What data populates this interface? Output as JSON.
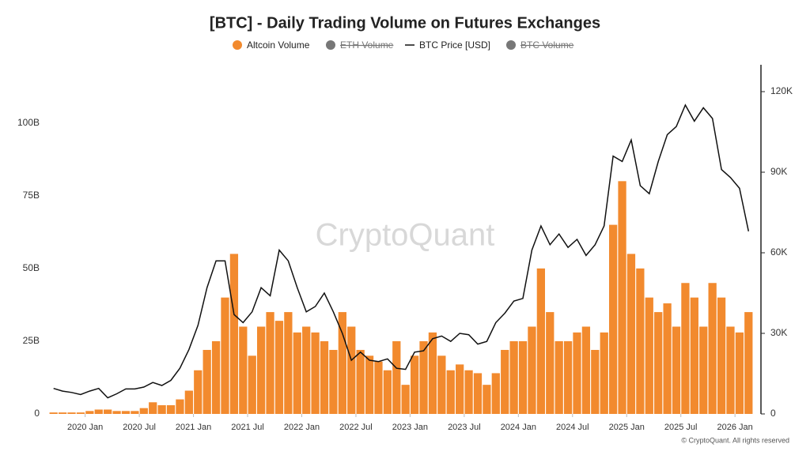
{
  "chart_data": {
    "type": "bar-line",
    "title": "[BTC] - Daily Trading Volume on Futures Exchanges",
    "watermark": "CryptoQuant",
    "credit": "© CryptoQuant. All rights reserved",
    "x": [
      "2019-09",
      "2019-10",
      "2019-11",
      "2019-12",
      "2020-01",
      "2020-02",
      "2020-03",
      "2020-04",
      "2020-05",
      "2020-06",
      "2020-07",
      "2020-08",
      "2020-09",
      "2020-10",
      "2020-11",
      "2020-12",
      "2021-01",
      "2021-02",
      "2021-03",
      "2021-04",
      "2021-05",
      "2021-06",
      "2021-07",
      "2021-08",
      "2021-09",
      "2021-10",
      "2021-11",
      "2021-12",
      "2022-01",
      "2022-02",
      "2022-03",
      "2022-04",
      "2022-05",
      "2022-06",
      "2022-07",
      "2022-08",
      "2022-09",
      "2022-10",
      "2022-11",
      "2022-12",
      "2023-01",
      "2023-02",
      "2023-03",
      "2023-04",
      "2023-05",
      "2023-06",
      "2023-07",
      "2023-08",
      "2023-09",
      "2023-10",
      "2023-11",
      "2023-12",
      "2024-01",
      "2024-02",
      "2024-03",
      "2024-04",
      "2024-05",
      "2024-06",
      "2024-07",
      "2024-08",
      "2024-09",
      "2024-10",
      "2024-11",
      "2024-12",
      "2025-01",
      "2025-02",
      "2025-03",
      "2025-04",
      "2025-05",
      "2025-06",
      "2025-07",
      "2025-08",
      "2025-09",
      "2025-10",
      "2025-11",
      "2025-12",
      "2026-01",
      "2026-02"
    ],
    "xticks": [
      {
        "value": "2020-01",
        "label": "2020 Jan"
      },
      {
        "value": "2020-07",
        "label": "2020 Jul"
      },
      {
        "value": "2021-01",
        "label": "2021 Jan"
      },
      {
        "value": "2021-07",
        "label": "2021 Jul"
      },
      {
        "value": "2022-01",
        "label": "2022 Jan"
      },
      {
        "value": "2022-07",
        "label": "2022 Jul"
      },
      {
        "value": "2023-01",
        "label": "2023 Jan"
      },
      {
        "value": "2023-07",
        "label": "2023 Jul"
      },
      {
        "value": "2024-01",
        "label": "2024 Jan"
      },
      {
        "value": "2024-07",
        "label": "2024 Jul"
      },
      {
        "value": "2025-01",
        "label": "2025 Jan"
      },
      {
        "value": "2025-07",
        "label": "2025 Jul"
      },
      {
        "value": "2026-01",
        "label": "2026 Jan"
      }
    ],
    "ylim": [
      0,
      120
    ],
    "yticks": [
      {
        "value": 0,
        "label": "0"
      },
      {
        "value": 25,
        "label": "25B"
      },
      {
        "value": 50,
        "label": "50B"
      },
      {
        "value": 75,
        "label": "75B"
      },
      {
        "value": 100,
        "label": "100B"
      }
    ],
    "y2lim": [
      0,
      130000
    ],
    "y2ticks": [
      {
        "value": 0,
        "label": "0"
      },
      {
        "value": 30000,
        "label": "30K"
      },
      {
        "value": 60000,
        "label": "60K"
      },
      {
        "value": 90000,
        "label": "90K"
      },
      {
        "value": 120000,
        "label": "120K"
      }
    ],
    "series": [
      {
        "name": "Altcoin Volume",
        "color": "#f28a2e",
        "kind": "bar",
        "values": [
          0.5,
          0.5,
          0.5,
          0.5,
          1,
          1.5,
          1.5,
          1,
          1,
          1,
          2,
          4,
          3,
          3,
          5,
          8,
          15,
          22,
          25,
          40,
          55,
          30,
          20,
          30,
          35,
          32,
          35,
          28,
          30,
          28,
          25,
          22,
          35,
          30,
          22,
          20,
          18,
          15,
          25,
          10,
          20,
          25,
          28,
          20,
          15,
          17,
          15,
          14,
          10,
          14,
          22,
          25,
          25,
          30,
          50,
          35,
          25,
          25,
          28,
          30,
          22,
          28,
          65,
          80,
          55,
          50,
          40,
          35,
          38,
          30,
          45,
          40,
          30,
          45,
          40,
          30,
          28,
          35
        ]
      },
      {
        "name": "ETH Volume",
        "color": "#777777",
        "hidden": true
      },
      {
        "name": "BTC Price [USD]",
        "color": "#111111",
        "kind": "line",
        "axis": "y2",
        "values": [
          9500,
          8500,
          8000,
          7200,
          8500,
          9500,
          6000,
          7500,
          9300,
          9300,
          10000,
          11700,
          10600,
          12500,
          17000,
          24000,
          33000,
          47000,
          57000,
          57000,
          37000,
          34000,
          38000,
          47000,
          44000,
          61000,
          57000,
          47000,
          38000,
          40000,
          45000,
          38000,
          30000,
          20000,
          23000,
          20000,
          19500,
          20500,
          17000,
          16600,
          23000,
          23500,
          28000,
          29000,
          27000,
          30000,
          29500,
          26000,
          27000,
          34000,
          37500,
          42000,
          43000,
          61000,
          70000,
          63000,
          67000,
          62000,
          65000,
          59000,
          63000,
          70000,
          96000,
          94000,
          102000,
          85000,
          82000,
          94000,
          104000,
          107000,
          115000,
          109000,
          114000,
          110000,
          91000,
          88000,
          84000,
          68000
        ]
      },
      {
        "name": "BTC Volume",
        "color": "#777777",
        "hidden": true
      }
    ]
  }
}
